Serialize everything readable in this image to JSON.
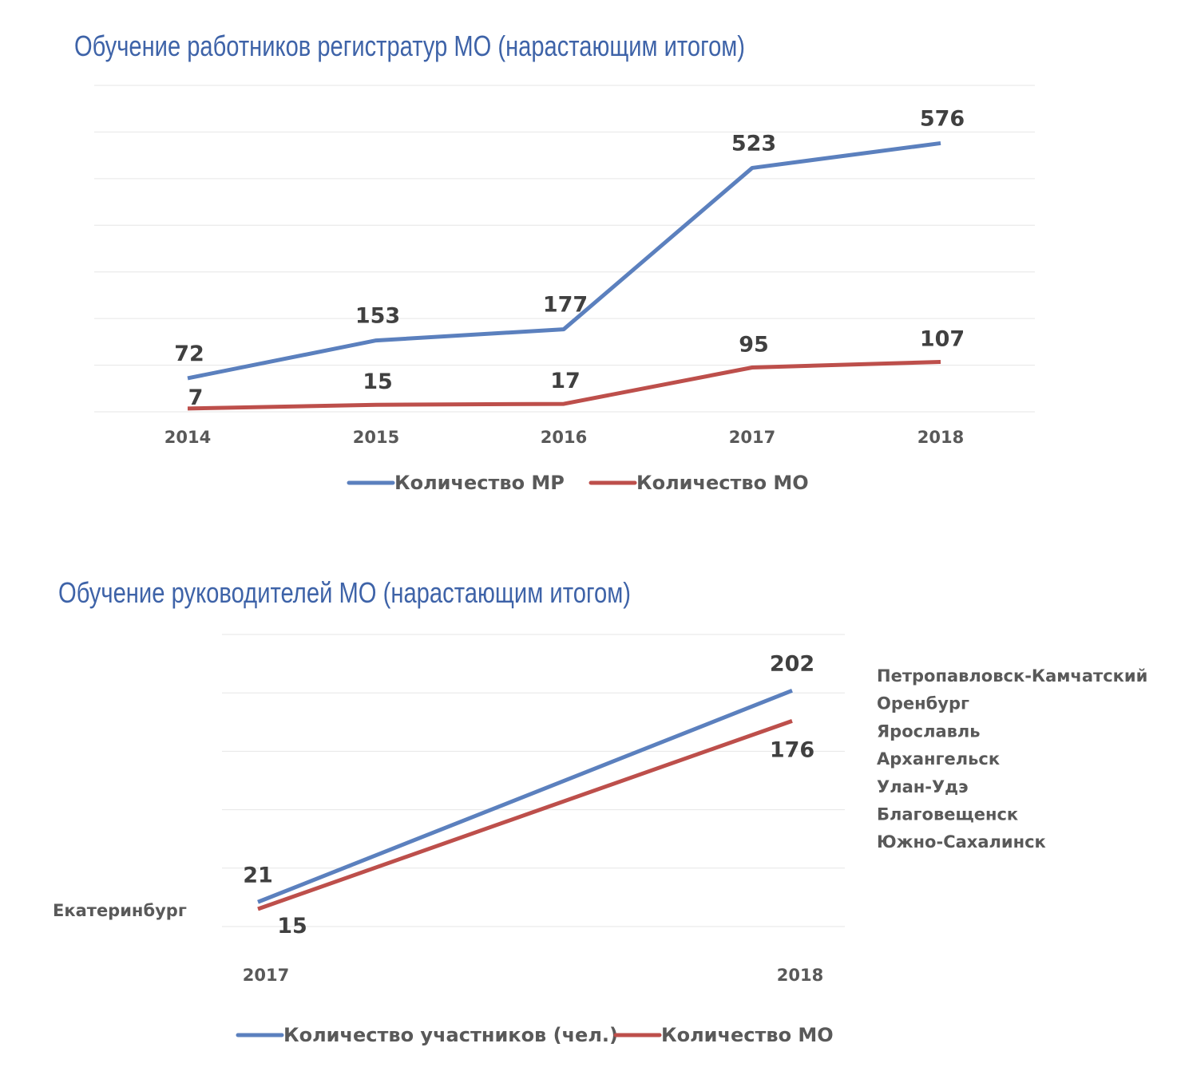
{
  "colors": {
    "blue": "#5b80be",
    "red": "#bd4f4b",
    "title": "#3e63a8",
    "grid": "#e6e6e6"
  },
  "chart_data": [
    {
      "type": "line",
      "title": "Обучение работников регистратур МО (нарастающим итогом)",
      "categories": [
        "2014",
        "2015",
        "2016",
        "2017",
        "2018"
      ],
      "ylim": [
        0,
        700
      ],
      "grid": true,
      "legend_position": "bottom",
      "series": [
        {
          "name": "Количество МР",
          "color": "blue",
          "values": [
            72,
            153,
            177,
            523,
            576
          ]
        },
        {
          "name": "Количество МО",
          "color": "red",
          "values": [
            7,
            15,
            17,
            95,
            107
          ]
        }
      ]
    },
    {
      "type": "line",
      "title": "Обучение руководителей МО (нарастающим итогом)",
      "categories": [
        "2017",
        "2018"
      ],
      "ylim": [
        0,
        250
      ],
      "grid": true,
      "legend_position": "bottom",
      "series": [
        {
          "name": "Количество участников (чел.)",
          "color": "blue",
          "values": [
            21,
            202
          ]
        },
        {
          "name": "Количество МО",
          "color": "red",
          "values": [
            15,
            176
          ]
        }
      ],
      "annotations": {
        "left_city": "Екатеринбург",
        "right_cities": [
          "Петропавловск-Камчатский",
          "Оренбург",
          "Ярославль",
          "Архангельск",
          "Улан-Удэ",
          "Благовещенск",
          "Южно-Сахалинск"
        ]
      }
    }
  ]
}
